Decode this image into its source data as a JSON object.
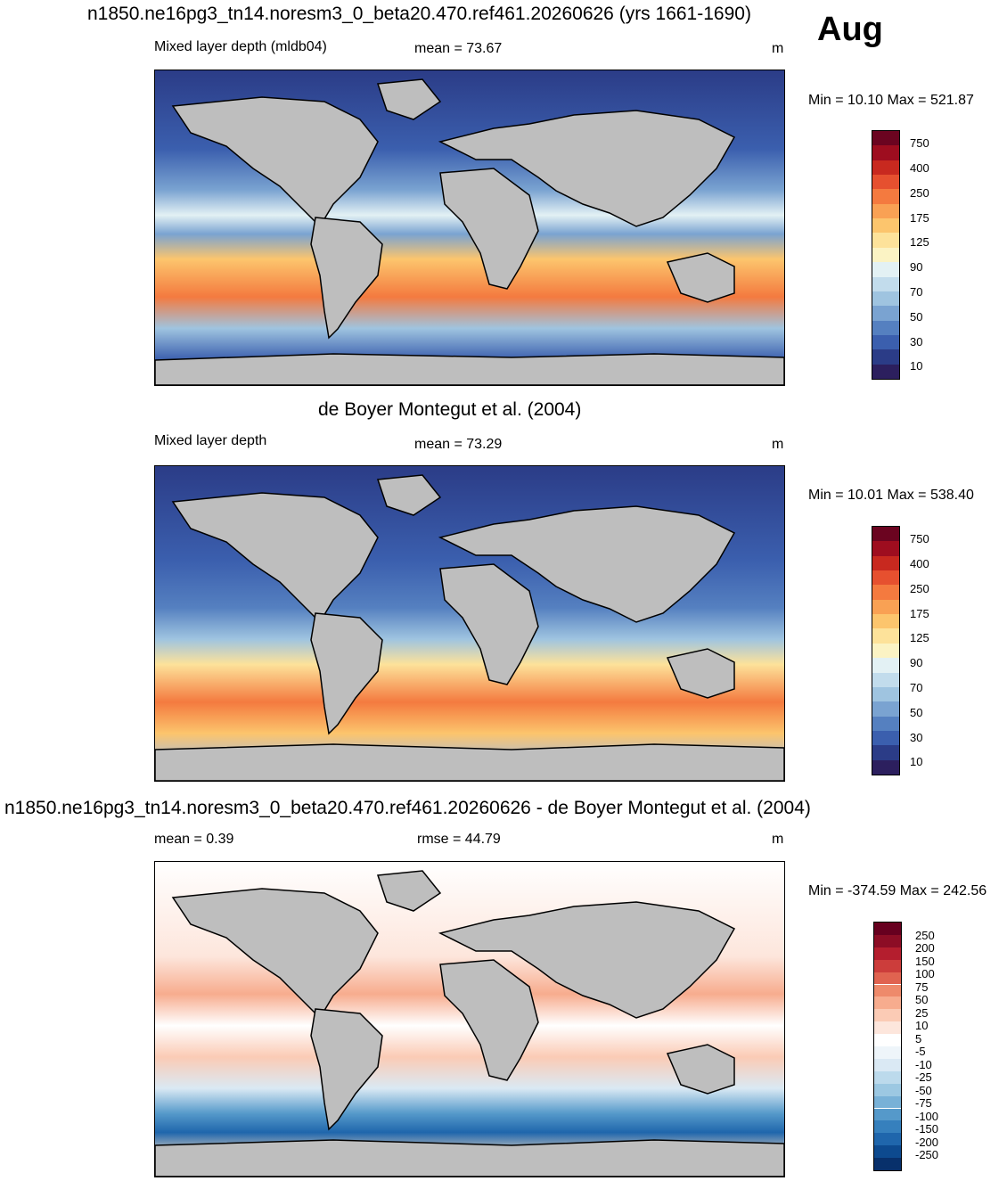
{
  "main_title": "n1850.ne16pg3_tn14.noresm3_0_beta20.470.ref461.20260626 (yrs 1661-1690)",
  "month": "Aug",
  "panels": [
    {
      "id": "model",
      "subtitle": "",
      "left_label": "Mixed layer depth (mldb04)",
      "center_label": "mean =  73.67",
      "units": "m",
      "minmax": "Min =  10.10 Max = 521.87",
      "colorbar_labels": [
        "750",
        "400",
        "250",
        "175",
        "125",
        "90",
        "70",
        "50",
        "30",
        "10"
      ],
      "colors": [
        "#2c1f5e",
        "#2b3c87",
        "#3b5fae",
        "#5580c0",
        "#7aa3d1",
        "#9fc4e0",
        "#c2dcec",
        "#e3f1f4",
        "#fbf3c4",
        "#fde29a",
        "#fcc56d",
        "#f9a154",
        "#f47a3f",
        "#e6502f",
        "#c8291f",
        "#9e0d1f",
        "#6b0420"
      ]
    },
    {
      "id": "obs",
      "subtitle": "de Boyer Montegut et al. (2004)",
      "left_label": "Mixed layer depth",
      "center_label": "mean =  73.29",
      "units": "m",
      "minmax": "Min =  10.01 Max = 538.40",
      "colorbar_labels": [
        "750",
        "400",
        "250",
        "175",
        "125",
        "90",
        "70",
        "50",
        "30",
        "10"
      ],
      "colors": [
        "#2c1f5e",
        "#2b3c87",
        "#3b5fae",
        "#5580c0",
        "#7aa3d1",
        "#9fc4e0",
        "#c2dcec",
        "#e3f1f4",
        "#fbf3c4",
        "#fde29a",
        "#fcc56d",
        "#f9a154",
        "#f47a3f",
        "#e6502f",
        "#c8291f",
        "#9e0d1f",
        "#6b0420"
      ]
    },
    {
      "id": "diff",
      "subtitle": "n1850.ne16pg3_tn14.noresm3_0_beta20.470.ref461.20260626 - de Boyer Montegut et al. (2004)",
      "left_label": "mean =   0.39",
      "center_label": "rmse =  44.79",
      "units": "m",
      "minmax": "Min = -374.59 Max = 242.56",
      "colorbar_labels": [
        "250",
        "200",
        "150",
        "100",
        "75",
        "50",
        "25",
        "10",
        "5",
        "-5",
        "-10",
        "-25",
        "-50",
        "-75",
        "-100",
        "-150",
        "-200",
        "-250"
      ],
      "colors": [
        "#08306b",
        "#0d4a8f",
        "#1f66ac",
        "#3680bd",
        "#5599ca",
        "#78b1d7",
        "#9cc8e2",
        "#bcdaec",
        "#dae9f4",
        "#eef5fa",
        "#ffffff",
        "#fde6dc",
        "#fbcbb5",
        "#f7ac8e",
        "#ee8a6b",
        "#e06350",
        "#cc3d3b",
        "#b41e2e",
        "#8c0d25",
        "#67001f"
      ]
    }
  ]
}
